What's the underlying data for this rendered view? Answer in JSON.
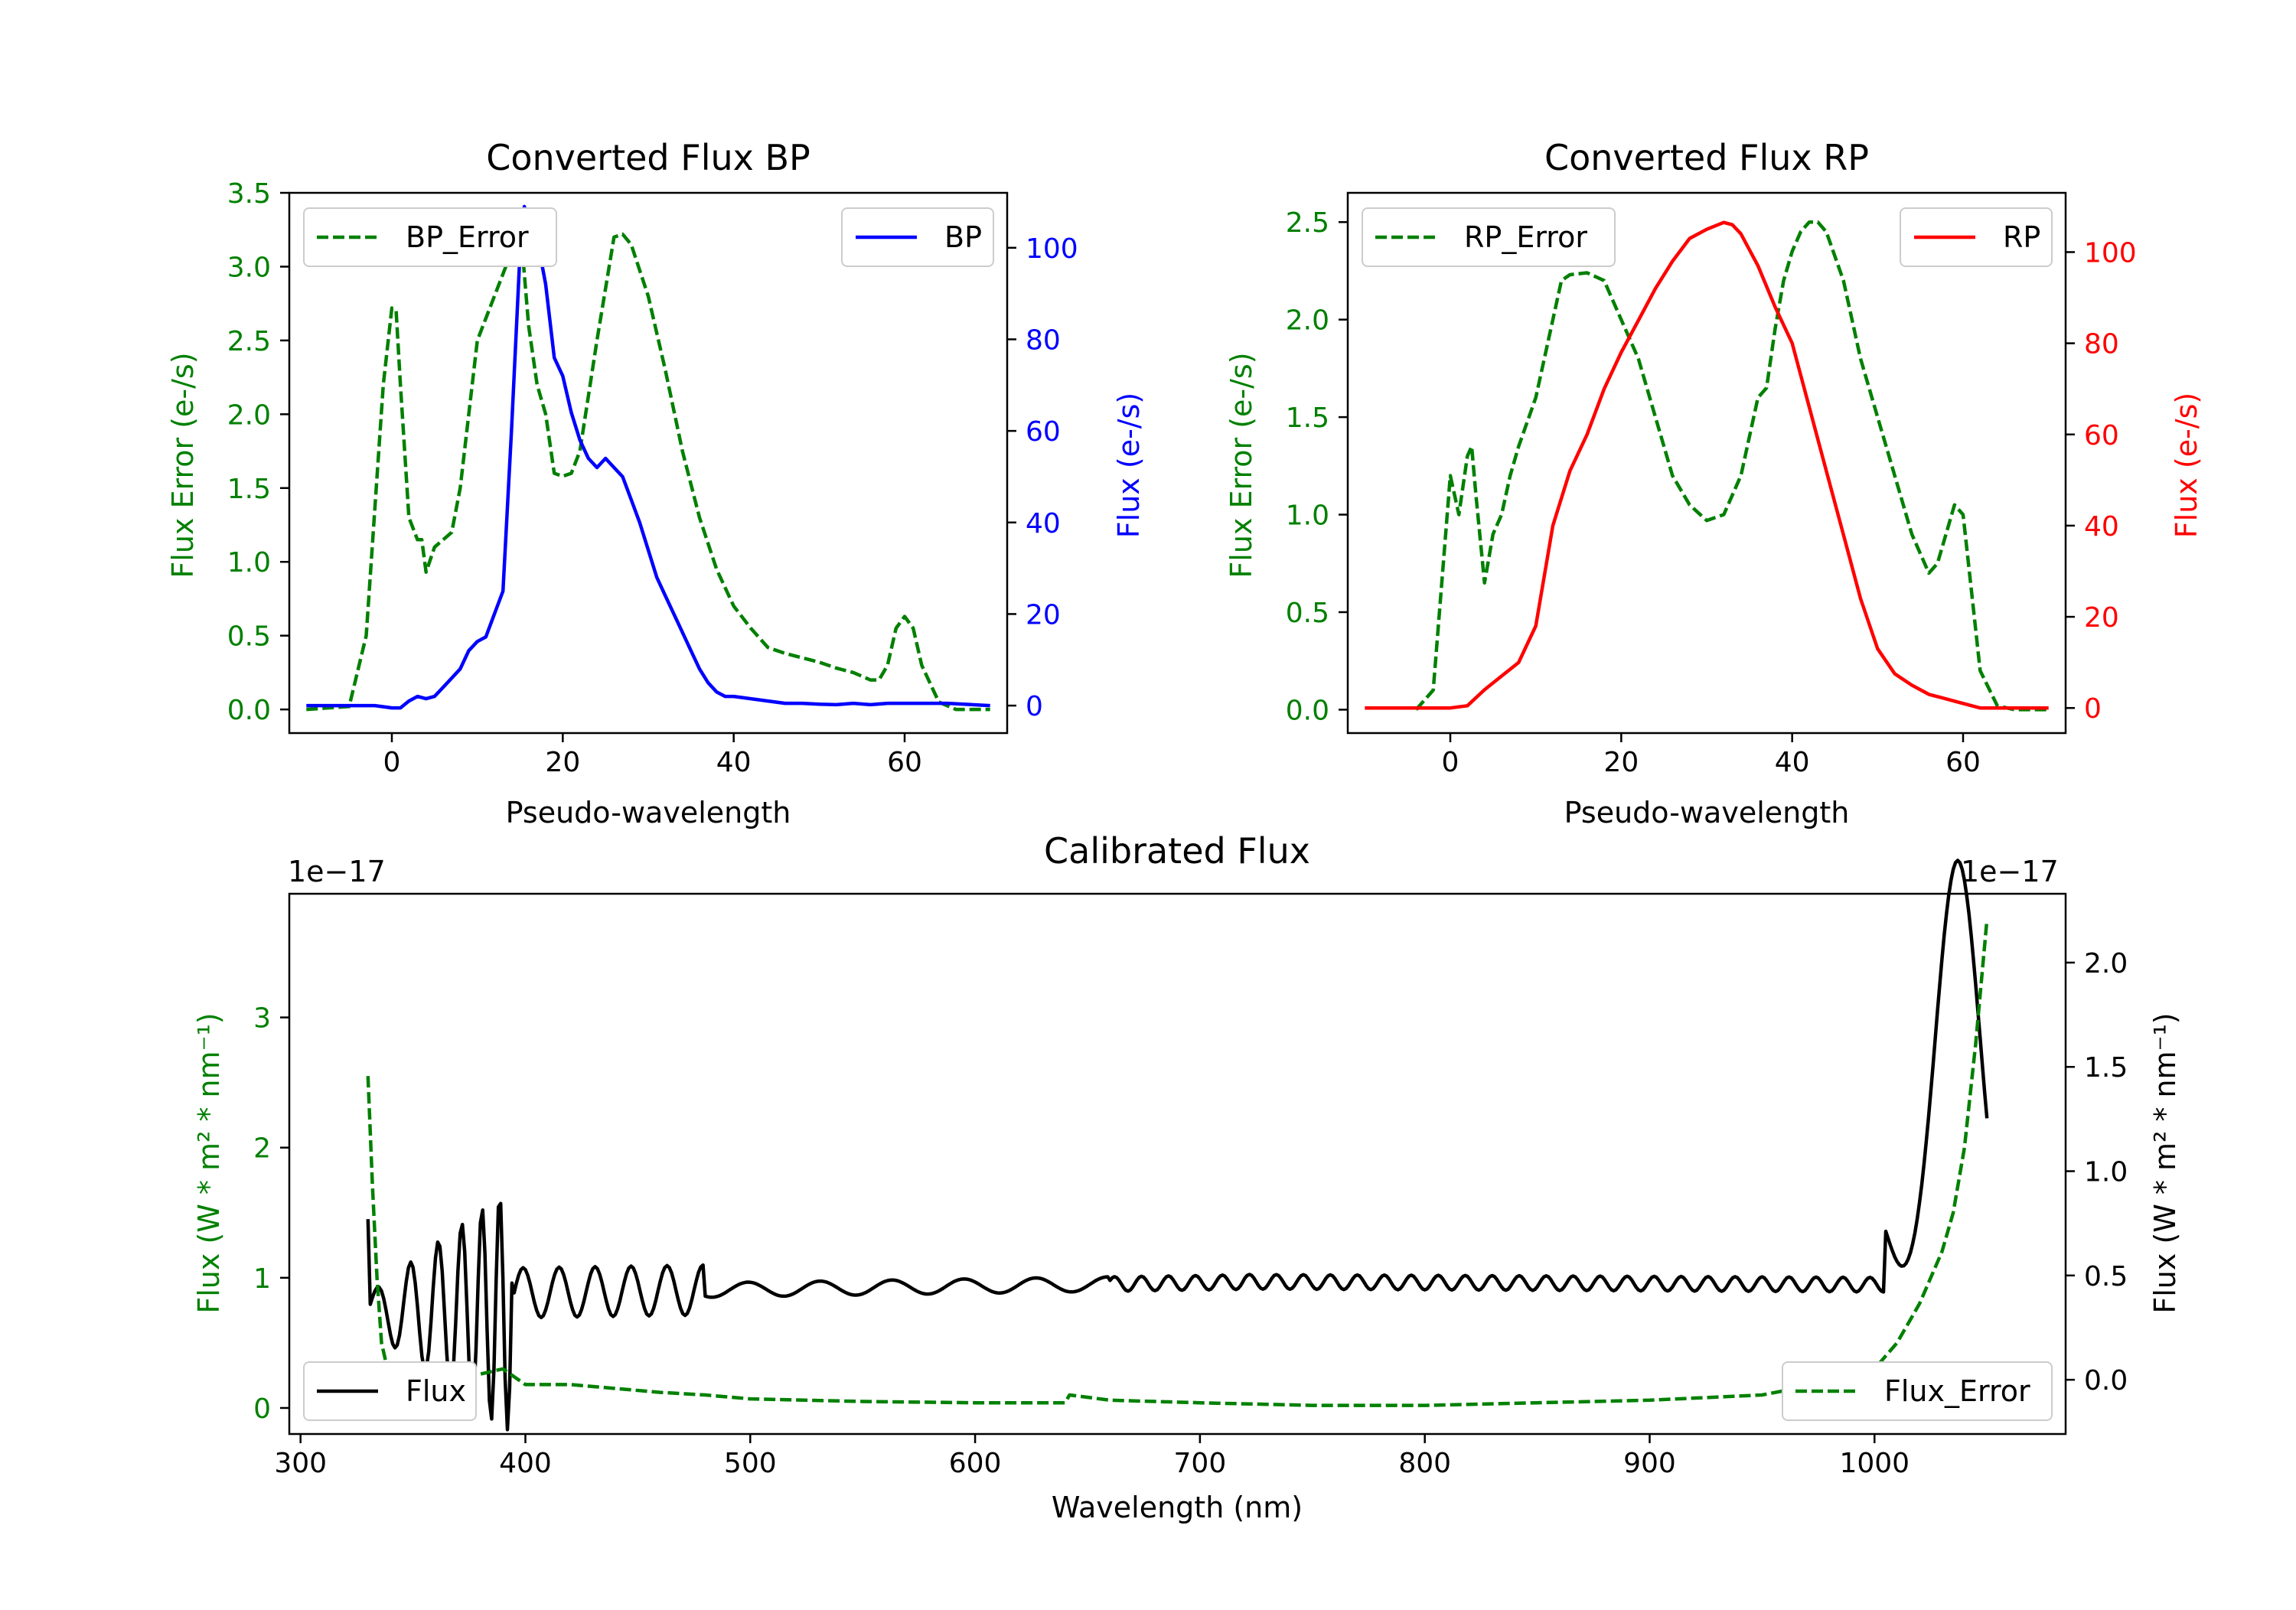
{
  "colors": {
    "green": "#008000",
    "blue": "#0000ff",
    "red": "#ff0000",
    "black": "#000000"
  },
  "chart_data": [
    {
      "type": "line",
      "title": "Converted Flux BP",
      "xlabel": "Pseudo-wavelength",
      "xlim": [
        -12,
        72
      ],
      "xticks": [
        0,
        20,
        40,
        60
      ],
      "xtick_labels": [
        "0",
        "20",
        "40",
        "60"
      ],
      "left_axis": {
        "label": "Flux Error (e-/s)",
        "color": "#008000",
        "ylim": [
          -0.16,
          3.5
        ],
        "ticks": [
          0,
          0.5,
          1,
          1.5,
          2,
          2.5,
          3,
          3.5
        ],
        "tick_labels": [
          "0.0",
          "0.5",
          "1.0",
          "1.5",
          "2.0",
          "2.5",
          "3.0",
          "3.5"
        ]
      },
      "right_axis": {
        "label": "Flux (e-/s)",
        "color": "#0000ff",
        "ylim": [
          -6,
          112
        ],
        "ticks": [
          0,
          20,
          40,
          60,
          80,
          100
        ],
        "tick_labels": [
          "0",
          "20",
          "40",
          "60",
          "80",
          "100"
        ]
      },
      "series": [
        {
          "name": "BP_Error",
          "axis": "left",
          "style": "dashed",
          "color": "#008000",
          "legend": "upper left",
          "x": [
            -10,
            -5,
            -3,
            -1,
            0,
            0.5,
            1,
            2,
            3,
            3.5,
            4,
            5,
            7,
            8,
            10,
            12,
            13,
            14,
            15,
            16,
            17,
            18,
            19,
            20,
            21,
            22,
            24,
            26,
            27,
            28,
            30,
            32,
            34,
            36,
            38,
            40,
            42,
            44,
            46,
            48,
            50,
            52,
            54,
            56,
            57,
            58,
            59,
            60,
            61,
            62,
            64,
            66,
            70
          ],
          "y": [
            0,
            0.02,
            0.5,
            2.2,
            2.72,
            2.7,
            2.2,
            1.3,
            1.15,
            1.15,
            0.93,
            1.1,
            1.2,
            1.5,
            2.5,
            2.8,
            2.95,
            3.1,
            3.3,
            2.6,
            2.2,
            2.0,
            1.6,
            1.58,
            1.6,
            1.75,
            2.5,
            3.2,
            3.22,
            3.15,
            2.8,
            2.3,
            1.75,
            1.3,
            0.95,
            0.7,
            0.55,
            0.42,
            0.38,
            0.35,
            0.32,
            0.28,
            0.25,
            0.2,
            0.2,
            0.3,
            0.55,
            0.63,
            0.55,
            0.3,
            0.05,
            0,
            0
          ]
        },
        {
          "name": "BP",
          "axis": "right",
          "style": "solid",
          "color": "#0000ff",
          "legend": "upper right",
          "x": [
            -10,
            -2,
            0,
            1,
            2,
            3,
            4,
            5,
            6,
            7,
            8,
            9,
            10,
            11,
            12,
            13,
            14,
            15,
            15.5,
            16,
            17,
            18,
            19,
            20,
            21,
            22,
            23,
            24,
            25,
            26,
            27,
            28,
            29,
            30,
            31,
            32,
            33,
            34,
            35,
            36,
            37,
            38,
            39,
            40,
            42,
            44,
            46,
            48,
            50,
            52,
            54,
            56,
            58,
            60,
            62,
            65,
            70
          ],
          "y": [
            0,
            0,
            -0.5,
            -0.5,
            1,
            2,
            1.5,
            2,
            4,
            6,
            8,
            12,
            14,
            15,
            20,
            25,
            60,
            99,
            109,
            106,
            102,
            92,
            76,
            72,
            64,
            58,
            54,
            52,
            54,
            52,
            50,
            45,
            40,
            34,
            28,
            24,
            20,
            16,
            12,
            8,
            5,
            3,
            2,
            2,
            1.5,
            1,
            0.5,
            0.5,
            0.3,
            0.2,
            0.5,
            0.2,
            0.5,
            0.5,
            0.5,
            0.5,
            0
          ]
        }
      ]
    },
    {
      "type": "line",
      "title": "Converted Flux RP",
      "xlabel": "Pseudo-wavelength",
      "xlim": [
        -12,
        72
      ],
      "xticks": [
        0,
        20,
        40,
        60
      ],
      "xtick_labels": [
        "0",
        "20",
        "40",
        "60"
      ],
      "left_axis": {
        "label": "Flux Error (e-/s)",
        "color": "#008000",
        "ylim": [
          -0.12,
          2.65
        ],
        "ticks": [
          0,
          0.5,
          1,
          1.5,
          2,
          2.5
        ],
        "tick_labels": [
          "0.0",
          "0.5",
          "1.0",
          "1.5",
          "2.0",
          "2.5"
        ]
      },
      "right_axis": {
        "label": "Flux (e-/s)",
        "color": "#ff0000",
        "ylim": [
          -5.5,
          113
        ],
        "ticks": [
          0,
          20,
          40,
          60,
          80,
          100
        ],
        "tick_labels": [
          "0",
          "20",
          "40",
          "60",
          "80",
          "100"
        ]
      },
      "series": [
        {
          "name": "RP_Error",
          "axis": "left",
          "style": "dashed",
          "color": "#008000",
          "legend": "upper left",
          "x": [
            -4,
            -2,
            0,
            1,
            2,
            2.5,
            3,
            4,
            5,
            6,
            7,
            8,
            10,
            12,
            13,
            14,
            16,
            18,
            20,
            22,
            24,
            26,
            28,
            30,
            32,
            34,
            36,
            37,
            38,
            39,
            40,
            41,
            42,
            43,
            44,
            46,
            48,
            50,
            52,
            54,
            56,
            57,
            58,
            59,
            60,
            61,
            62,
            64,
            66,
            70
          ],
          "y": [
            0,
            0.1,
            1.2,
            1.0,
            1.3,
            1.35,
            1.1,
            0.65,
            0.9,
            1.0,
            1.2,
            1.35,
            1.6,
            2.0,
            2.2,
            2.23,
            2.24,
            2.2,
            2.0,
            1.8,
            1.5,
            1.2,
            1.05,
            0.97,
            1.0,
            1.2,
            1.6,
            1.65,
            1.95,
            2.2,
            2.35,
            2.45,
            2.5,
            2.5,
            2.45,
            2.2,
            1.8,
            1.5,
            1.2,
            0.9,
            0.7,
            0.75,
            0.9,
            1.05,
            1.0,
            0.6,
            0.2,
            0.02,
            0,
            0
          ]
        },
        {
          "name": "RP",
          "axis": "right",
          "style": "solid",
          "color": "#ff0000",
          "legend": "upper right",
          "x": [
            -10,
            0,
            2,
            4,
            6,
            8,
            10,
            12,
            14,
            16,
            18,
            20,
            22,
            24,
            26,
            28,
            30,
            32,
            33,
            34,
            36,
            38,
            40,
            42,
            44,
            46,
            48,
            50,
            52,
            54,
            56,
            58,
            60,
            62,
            64,
            66,
            70
          ],
          "y": [
            0,
            0,
            0.5,
            4,
            7,
            10,
            18,
            40,
            52,
            60,
            70,
            78,
            85,
            92,
            98,
            103,
            105,
            106.5,
            106,
            104,
            97,
            88,
            80,
            66,
            52,
            38,
            24,
            13,
            7.5,
            5,
            3,
            2,
            1,
            0,
            0,
            0,
            0
          ]
        }
      ]
    },
    {
      "type": "line",
      "title": "Calibrated Flux",
      "xlabel": "Wavelength (nm)",
      "xlim": [
        295,
        1085
      ],
      "xticks": [
        300,
        400,
        500,
        600,
        700,
        800,
        900,
        1000
      ],
      "xtick_labels": [
        "300",
        "400",
        "500",
        "600",
        "700",
        "800",
        "900",
        "1000"
      ],
      "left_axis": {
        "label": "Flux (W * m² * nm⁻¹)",
        "color": "#008000",
        "ylim": [
          -0.2,
          3.95
        ],
        "multiplier": "1e−17",
        "ticks": [
          0,
          1,
          2,
          3
        ],
        "tick_labels": [
          "0",
          "1",
          "2",
          "3"
        ]
      },
      "right_axis": {
        "label": "Flux (W * m² * nm⁻¹)",
        "color": "#000000",
        "ylim": [
          -0.26,
          2.33
        ],
        "multiplier": "1e−17",
        "ticks": [
          0,
          0.5,
          1,
          1.5,
          2
        ],
        "tick_labels": [
          "0.0",
          "0.5",
          "1.0",
          "1.5",
          "2.0"
        ]
      },
      "series": [
        {
          "name": "Flux_Error",
          "axis": "left",
          "style": "dashed",
          "color": "#008000",
          "legend": "lower right",
          "x": [
            330,
            332,
            334,
            336,
            338,
            340,
            345,
            350,
            360,
            370,
            380,
            390,
            400,
            420,
            440,
            460,
            480,
            500,
            550,
            600,
            640,
            642,
            660,
            700,
            750,
            800,
            850,
            900,
            950,
            980,
            1000,
            1010,
            1020,
            1030,
            1035,
            1040,
            1045,
            1050
          ],
          "y": [
            2.55,
            1.7,
            1.0,
            0.5,
            0.35,
            0.3,
            0.3,
            0.3,
            0.28,
            0.26,
            0.26,
            0.3,
            0.18,
            0.18,
            0.15,
            0.12,
            0.1,
            0.07,
            0.05,
            0.04,
            0.04,
            0.1,
            0.06,
            0.04,
            0.02,
            0.02,
            0.04,
            0.06,
            0.1,
            0.2,
            0.3,
            0.5,
            0.8,
            1.2,
            1.5,
            2.0,
            2.8,
            3.75
          ]
        }
      ]
    }
  ]
}
